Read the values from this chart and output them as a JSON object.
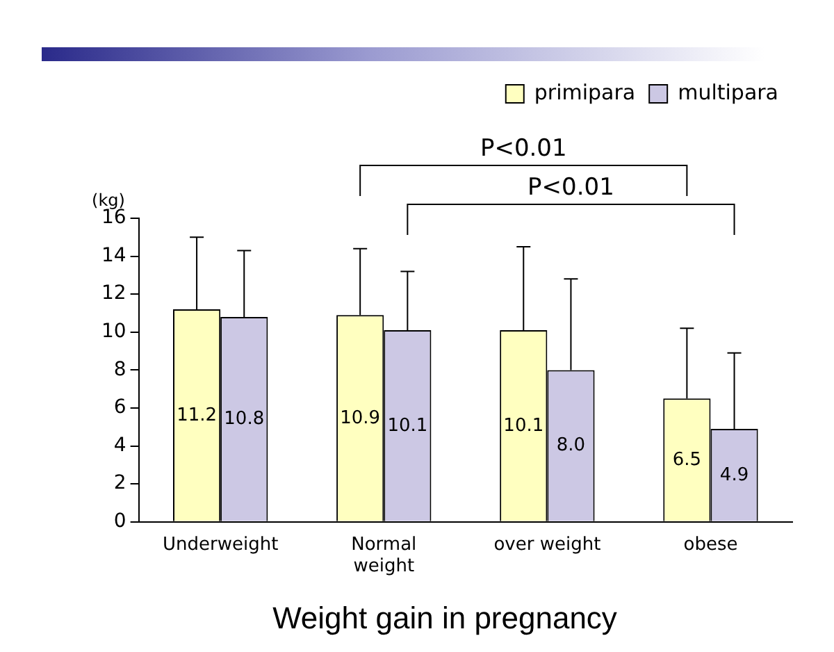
{
  "chart_data": {
    "type": "bar",
    "title": "Weight gain in pregnancy",
    "ylabel": "(kg)",
    "categories": [
      "Underweight",
      "Normal weight",
      "over weight",
      "obese"
    ],
    "series": [
      {
        "name": "primipara",
        "color": "#ffffc0",
        "values": [
          11.2,
          10.9,
          10.1,
          6.5
        ],
        "value_labels": [
          "11.2",
          "10.9",
          "10.1",
          "6.5"
        ],
        "errors": [
          [
            11.2,
            15.0
          ],
          [
            10.9,
            14.4
          ],
          [
            10.1,
            14.5
          ],
          [
            6.5,
            10.2
          ]
        ]
      },
      {
        "name": "multipara",
        "color": "#ccc8e4",
        "values": [
          10.8,
          10.1,
          8.0,
          4.9
        ],
        "value_labels": [
          "10.8",
          "10.1",
          "8.0",
          "4.9"
        ],
        "errors": [
          [
            10.8,
            14.3
          ],
          [
            10.1,
            13.2
          ],
          [
            8.0,
            12.8
          ],
          [
            4.9,
            8.9
          ]
        ]
      }
    ],
    "annotations": [
      "P<0.01",
      "P<0.01"
    ],
    "ylim": [
      0,
      16
    ],
    "yticks": [
      0,
      2,
      4,
      6,
      8,
      10,
      12,
      14,
      16
    ],
    "grid": false,
    "legend": "top right"
  }
}
